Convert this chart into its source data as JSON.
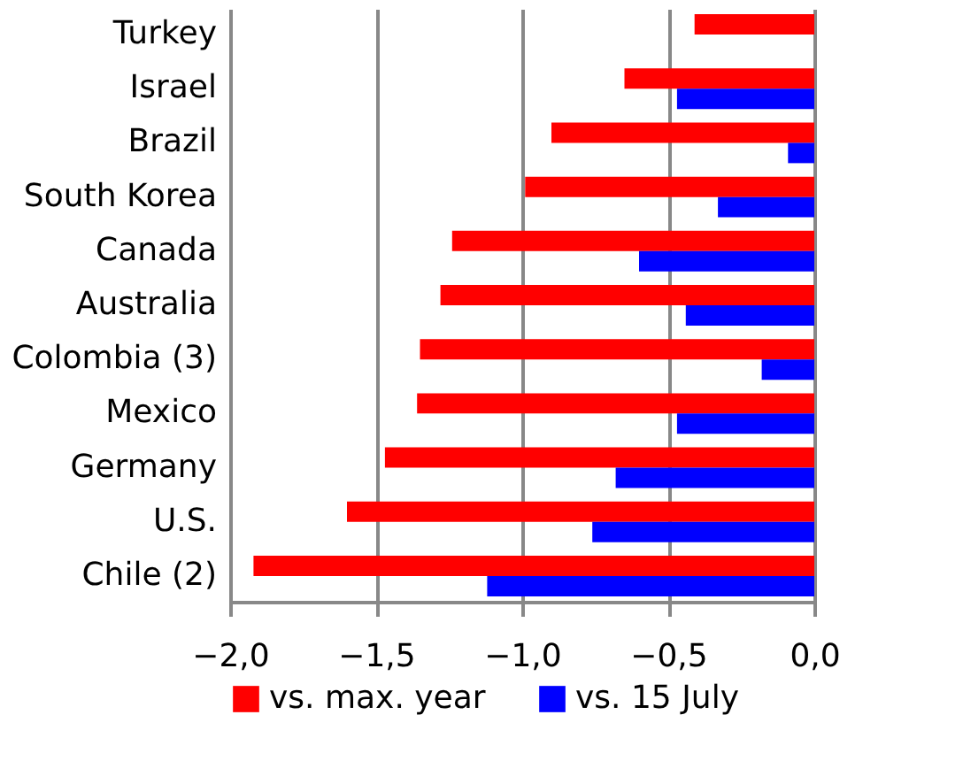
{
  "chart_data": {
    "type": "bar",
    "orientation": "horizontal",
    "categories": [
      "Turkey",
      "Israel",
      "Brazil",
      "South Korea",
      "Canada",
      "Australia",
      "Colombia (3)",
      "Mexico",
      "Germany",
      "U.S.",
      "Chile (2)"
    ],
    "series": [
      {
        "name": "vs. max. year",
        "color": "#ff0000",
        "values": [
          -0.41,
          -0.65,
          -0.9,
          -0.99,
          -1.24,
          -1.28,
          -1.35,
          -1.36,
          -1.47,
          -1.6,
          -1.92
        ]
      },
      {
        "name": "vs. 15 July",
        "color": "#0000ff",
        "values": [
          null,
          -0.47,
          -0.09,
          -0.33,
          -0.6,
          -0.44,
          -0.18,
          -0.47,
          -0.68,
          -0.76,
          -1.12
        ]
      }
    ],
    "xlim": [
      -2.0,
      0.0
    ],
    "xticks": [
      {
        "value": -2.0,
        "label": "−2,0"
      },
      {
        "value": -1.5,
        "label": "−1,5"
      },
      {
        "value": -1.0,
        "label": "−1,0"
      },
      {
        "value": -0.5,
        "label": "−0,5"
      },
      {
        "value": 0.0,
        "label": "0,0"
      }
    ],
    "grid": "x",
    "legend": "bottom"
  }
}
